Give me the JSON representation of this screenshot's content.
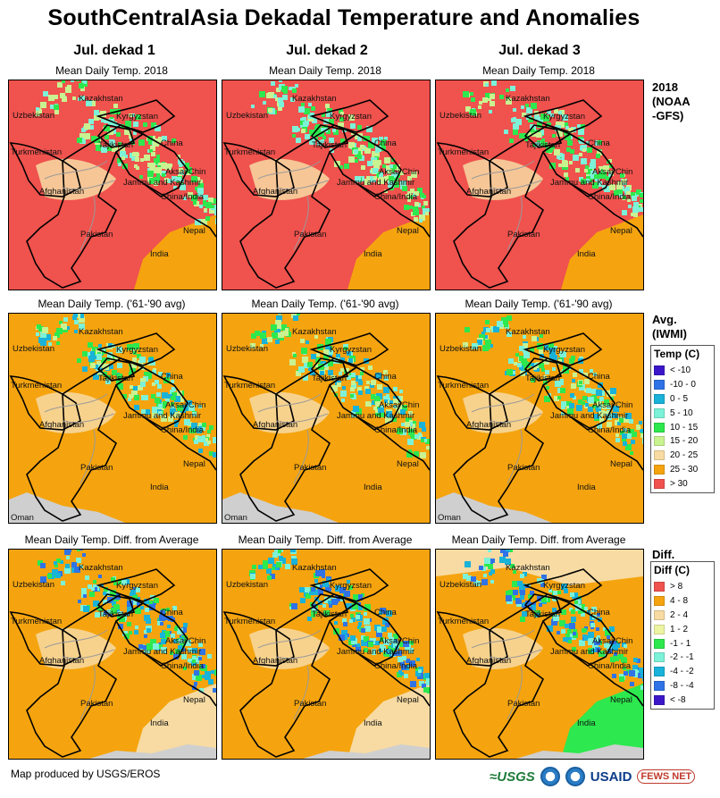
{
  "title": "SouthCentralAsia Dekadal Temperature and Anomalies",
  "columns": [
    {
      "header": "Jul. dekad 1"
    },
    {
      "header": "Jul. dekad 2"
    },
    {
      "header": "Jul. dekad 3"
    }
  ],
  "rows": [
    {
      "caption": "Mean Daily Temp. 2018",
      "label": "2018\n(NOAA\n-GFS)"
    },
    {
      "caption": "Mean Daily Temp. ('61-'90 avg)",
      "label": "Avg.\n(IWMI)"
    },
    {
      "caption": "Mean Daily Temp. Diff. from Average",
      "label": "Diff."
    }
  ],
  "map_labels": [
    "Kazakhstan",
    "Uzbekistan",
    "Kyrgyzstan",
    "Turkmenistan",
    "Tajikistan",
    "China",
    "Aksai Chin",
    "Jammu and Kashmir",
    "Afghanistan",
    "China/India",
    "Pakistan",
    "Nepal",
    "India"
  ],
  "oman_label": "Oman",
  "temp_legend": {
    "title": "Temp (C)",
    "items": [
      {
        "label": "< -10",
        "color": "#3b16c9"
      },
      {
        "label": "-10 - 0",
        "color": "#2f73e6"
      },
      {
        "label": "0 - 5",
        "color": "#19b2d9"
      },
      {
        "label": "5 - 10",
        "color": "#7cf2d8"
      },
      {
        "label": "10 - 15",
        "color": "#2de84e"
      },
      {
        "label": "15 - 20",
        "color": "#c9f291"
      },
      {
        "label": "20 - 25",
        "color": "#f7dba3"
      },
      {
        "label": "25 - 30",
        "color": "#f5a40f"
      },
      {
        "label": "> 30",
        "color": "#f0524d"
      }
    ]
  },
  "diff_legend": {
    "title": "Diff (C)",
    "items": [
      {
        "label": "> 8",
        "color": "#f0524d"
      },
      {
        "label": "4 - 8",
        "color": "#f5a40f"
      },
      {
        "label": "2 - 4",
        "color": "#f7dba3"
      },
      {
        "label": "1 - 2",
        "color": "#eef5a2"
      },
      {
        "label": "-1 - 1",
        "color": "#2de84e"
      },
      {
        "label": "-2 - -1",
        "color": "#7cf2d8"
      },
      {
        "label": "-4 - -2",
        "color": "#19b2d9"
      },
      {
        "label": "-8 - -4",
        "color": "#2f73e6"
      },
      {
        "label": "< -8",
        "color": "#3b16c9"
      }
    ]
  },
  "footer": {
    "credit": "Map produced by USGS/EROS"
  },
  "logos": {
    "usgs": "≈USGS",
    "usaid": "USAID",
    "fews": "FEWS NET"
  }
}
